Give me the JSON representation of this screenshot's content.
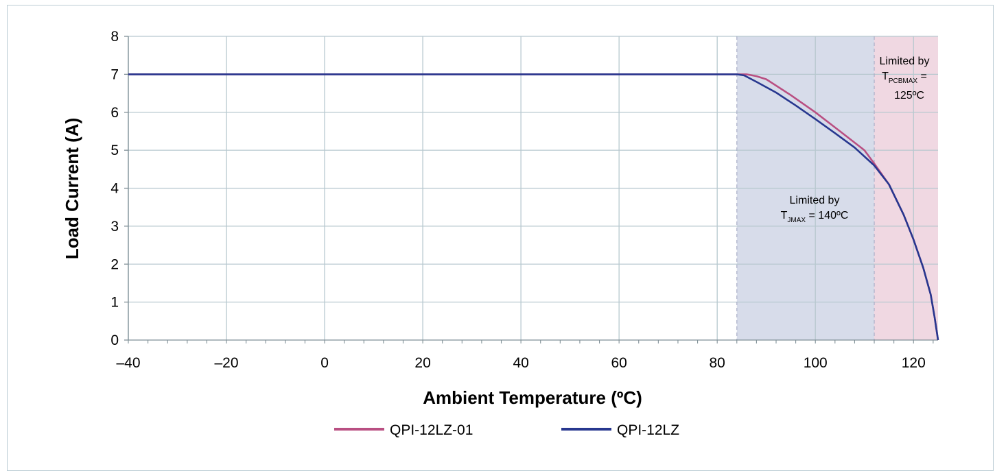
{
  "chart_data": {
    "type": "line",
    "xlabel": "Ambient Temperature (ºC)",
    "ylabel": "Load Current (A)",
    "xlim": [
      -40,
      125
    ],
    "ylim": [
      0,
      8
    ],
    "x_ticks": [
      -40,
      -20,
      0,
      20,
      40,
      60,
      80,
      100,
      120
    ],
    "x_tick_labels": [
      "–40",
      "–20",
      "0",
      "20",
      "40",
      "60",
      "80",
      "100",
      "120"
    ],
    "y_ticks": [
      0,
      1,
      2,
      3,
      4,
      5,
      6,
      7,
      8
    ],
    "y_tick_labels": [
      "0",
      "1",
      "2",
      "3",
      "4",
      "5",
      "6",
      "7",
      "8"
    ],
    "grid": true,
    "legend_position": "bottom",
    "regions": [
      {
        "x_range": [
          84,
          112
        ],
        "color": "#d7dcea",
        "label_line1": "Limited by",
        "label_T": "T",
        "label_sub": "JMAX",
        "label_rest": " = 140ºC"
      },
      {
        "x_range": [
          112,
          125
        ],
        "color": "#f0d8e2",
        "label_line1": "Limited by",
        "label_T": "T",
        "label_sub": "PCBMAX",
        "label_rest": " =",
        "label_line3": "125ºC"
      }
    ],
    "series": [
      {
        "name": "QPI-12LZ-01",
        "color": "#b94f82",
        "x": [
          -40,
          84,
          86,
          88,
          90,
          95,
          100,
          105,
          110,
          112,
          115,
          118,
          120,
          122,
          123.5,
          124.3,
          125
        ],
        "y": [
          7,
          7,
          7,
          6.95,
          6.87,
          6.45,
          6.0,
          5.5,
          5.0,
          4.65,
          4.1,
          3.3,
          2.65,
          1.9,
          1.2,
          0.6,
          0
        ]
      },
      {
        "name": "QPI-12LZ",
        "color": "#27378f",
        "x": [
          -40,
          84,
          85.5,
          88,
          92,
          96,
          100,
          104,
          108,
          112,
          115,
          118,
          120,
          122,
          123.5,
          124.3,
          125
        ],
        "y": [
          7,
          7,
          6.97,
          6.8,
          6.52,
          6.18,
          5.82,
          5.45,
          5.07,
          4.6,
          4.1,
          3.3,
          2.65,
          1.9,
          1.2,
          0.6,
          0
        ]
      }
    ]
  }
}
